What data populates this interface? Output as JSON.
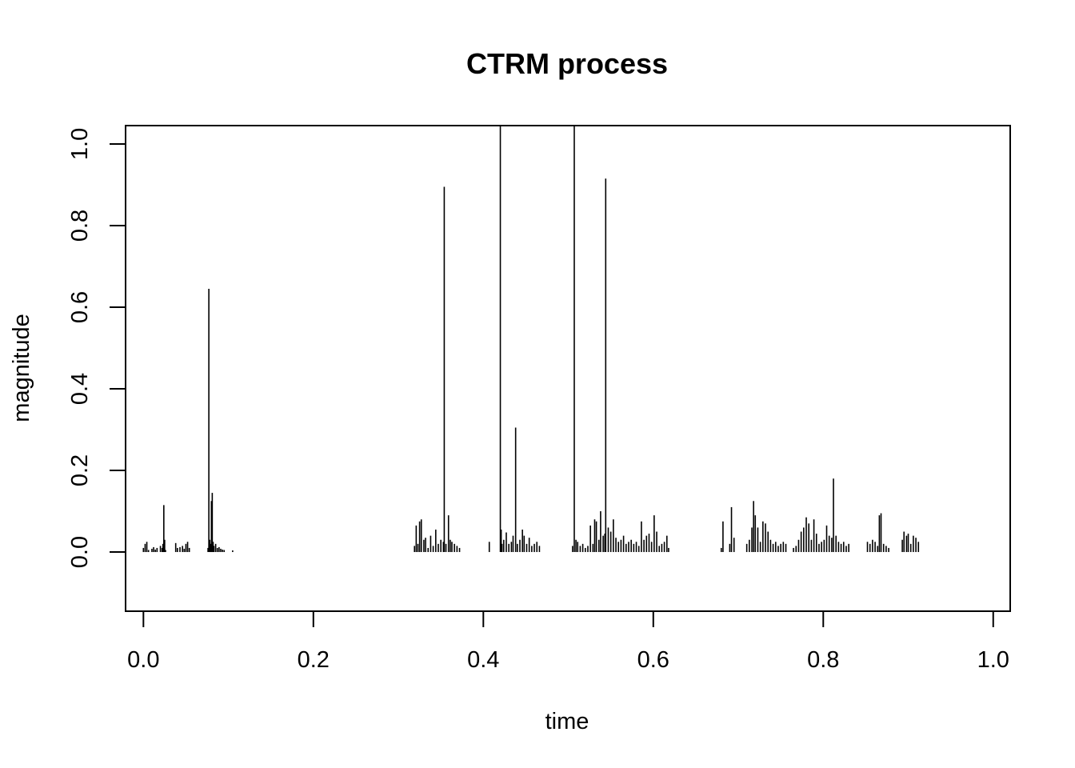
{
  "chart_data": {
    "type": "spike",
    "title": "CTRM process",
    "xlabel": "time",
    "ylabel": "magnitude",
    "xlim": [
      -0.021,
      1.02
    ],
    "ylim": [
      -0.145,
      1.045
    ],
    "x_ticks": [
      0.0,
      0.2,
      0.4,
      0.6,
      0.8,
      1.0
    ],
    "x_tick_labels": [
      "0.0",
      "0.2",
      "0.4",
      "0.6",
      "0.8",
      "1.0"
    ],
    "y_ticks": [
      0.0,
      0.2,
      0.4,
      0.6,
      0.8,
      1.0
    ],
    "y_tick_labels": [
      "0.0",
      "0.2",
      "0.4",
      "0.6",
      "0.8",
      "1.0"
    ],
    "grid": false,
    "line_color": "#000000",
    "series": [
      {
        "x": [
          0.0,
          0.002,
          0.004,
          0.006,
          0.01,
          0.012,
          0.014,
          0.016,
          0.02,
          0.022,
          0.023,
          0.024,
          0.025,
          0.026,
          0.038,
          0.04,
          0.043,
          0.046,
          0.048,
          0.05,
          0.052,
          0.054,
          0.076,
          0.077,
          0.078,
          0.079,
          0.08,
          0.081,
          0.082,
          0.083,
          0.085,
          0.087,
          0.089,
          0.091,
          0.093,
          0.095,
          0.105,
          0.319,
          0.321,
          0.323,
          0.325,
          0.327,
          0.33,
          0.332,
          0.335,
          0.338,
          0.341,
          0.344,
          0.347,
          0.35,
          0.353,
          0.354,
          0.356,
          0.359,
          0.361,
          0.363,
          0.366,
          0.369,
          0.372,
          0.407,
          0.42,
          0.421,
          0.422,
          0.424,
          0.427,
          0.43,
          0.433,
          0.435,
          0.438,
          0.44,
          0.443,
          0.446,
          0.448,
          0.451,
          0.454,
          0.457,
          0.46,
          0.463,
          0.466,
          0.505,
          0.507,
          0.509,
          0.511,
          0.514,
          0.517,
          0.52,
          0.523,
          0.526,
          0.529,
          0.531,
          0.533,
          0.536,
          0.538,
          0.541,
          0.543,
          0.544,
          0.547,
          0.55,
          0.553,
          0.556,
          0.559,
          0.562,
          0.565,
          0.568,
          0.571,
          0.574,
          0.577,
          0.58,
          0.583,
          0.586,
          0.589,
          0.592,
          0.595,
          0.598,
          0.601,
          0.604,
          0.607,
          0.61,
          0.613,
          0.616,
          0.618,
          0.68,
          0.682,
          0.69,
          0.692,
          0.695,
          0.71,
          0.713,
          0.716,
          0.718,
          0.72,
          0.723,
          0.726,
          0.729,
          0.732,
          0.735,
          0.738,
          0.741,
          0.744,
          0.747,
          0.75,
          0.753,
          0.756,
          0.765,
          0.768,
          0.771,
          0.774,
          0.777,
          0.78,
          0.783,
          0.786,
          0.789,
          0.792,
          0.795,
          0.798,
          0.801,
          0.804,
          0.807,
          0.81,
          0.812,
          0.815,
          0.818,
          0.821,
          0.824,
          0.827,
          0.83,
          0.852,
          0.855,
          0.858,
          0.861,
          0.864,
          0.866,
          0.868,
          0.871,
          0.874,
          0.877,
          0.893,
          0.895,
          0.898,
          0.9,
          0.903,
          0.906,
          0.909,
          0.912
        ],
        "y": [
          0.01,
          0.02,
          0.025,
          0.005,
          0.008,
          0.012,
          0.006,
          0.01,
          0.015,
          0.01,
          0.02,
          0.115,
          0.03,
          0.005,
          0.022,
          0.01,
          0.012,
          0.015,
          0.008,
          0.02,
          0.025,
          0.01,
          0.01,
          0.645,
          0.03,
          0.02,
          0.125,
          0.145,
          0.025,
          0.015,
          0.02,
          0.01,
          0.012,
          0.008,
          0.006,
          0.005,
          0.004,
          0.015,
          0.065,
          0.02,
          0.075,
          0.08,
          0.03,
          0.035,
          0.01,
          0.04,
          0.015,
          0.055,
          0.02,
          0.03,
          0.025,
          0.895,
          0.02,
          0.09,
          0.03,
          0.025,
          0.02,
          0.015,
          0.01,
          0.025,
          1.045,
          0.055,
          0.02,
          0.03,
          0.048,
          0.02,
          0.025,
          0.04,
          0.305,
          0.02,
          0.03,
          0.055,
          0.04,
          0.02,
          0.035,
          0.015,
          0.02,
          0.025,
          0.015,
          0.015,
          1.045,
          0.03,
          0.025,
          0.015,
          0.02,
          0.01,
          0.015,
          0.065,
          0.02,
          0.08,
          0.075,
          0.03,
          0.1,
          0.04,
          0.045,
          0.915,
          0.06,
          0.05,
          0.08,
          0.035,
          0.025,
          0.03,
          0.04,
          0.02,
          0.025,
          0.03,
          0.02,
          0.025,
          0.015,
          0.075,
          0.03,
          0.04,
          0.045,
          0.025,
          0.09,
          0.05,
          0.015,
          0.02,
          0.025,
          0.04,
          0.01,
          0.01,
          0.075,
          0.02,
          0.11,
          0.035,
          0.02,
          0.03,
          0.06,
          0.125,
          0.09,
          0.06,
          0.025,
          0.075,
          0.07,
          0.05,
          0.03,
          0.02,
          0.025,
          0.015,
          0.02,
          0.025,
          0.02,
          0.01,
          0.015,
          0.03,
          0.05,
          0.06,
          0.085,
          0.07,
          0.03,
          0.08,
          0.045,
          0.02,
          0.025,
          0.03,
          0.065,
          0.04,
          0.035,
          0.18,
          0.04,
          0.025,
          0.02,
          0.025,
          0.015,
          0.02,
          0.025,
          0.02,
          0.03,
          0.025,
          0.015,
          0.09,
          0.095,
          0.02,
          0.015,
          0.01,
          0.03,
          0.05,
          0.04,
          0.045,
          0.02,
          0.04,
          0.035,
          0.025
        ]
      }
    ]
  }
}
